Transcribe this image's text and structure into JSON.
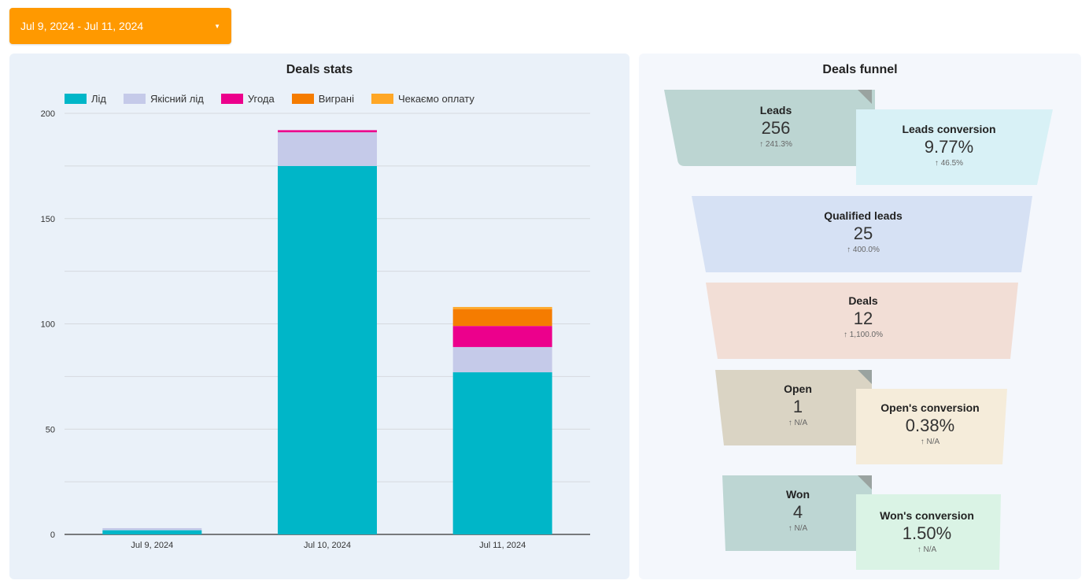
{
  "date_range": {
    "label": "Jul 9, 2024 - Jul 11, 2024"
  },
  "left_panel": {
    "title": "Deals stats"
  },
  "right_panel": {
    "title": "Deals funnel"
  },
  "chart_data": {
    "type": "bar",
    "stacked": true,
    "title": "Deals stats",
    "categories": [
      "Jul 9, 2024",
      "Jul 10, 2024",
      "Jul 11, 2024"
    ],
    "series": [
      {
        "name": "Лід",
        "color": "#00b6c8",
        "values": [
          2,
          175,
          77
        ]
      },
      {
        "name": "Якісний лід",
        "color": "#c5cae9",
        "values": [
          1,
          16,
          12
        ]
      },
      {
        "name": "Угода",
        "color": "#ec008c",
        "values": [
          0,
          1,
          10
        ]
      },
      {
        "name": "Виграні",
        "color": "#f57c00",
        "values": [
          0,
          0,
          8
        ]
      },
      {
        "name": "Чекаємо оплату",
        "color": "#ffa726",
        "values": [
          0,
          0,
          1
        ]
      }
    ],
    "ylim": [
      0,
      200
    ],
    "yticks": [
      0,
      50,
      100,
      150,
      200
    ],
    "grid": true,
    "legend_position": "top-left"
  },
  "funnel": {
    "leads": {
      "label": "Leads",
      "value": "256",
      "change": "241.3%",
      "color": "#bcd5d2"
    },
    "leads_conversion": {
      "label": "Leads conversion",
      "value": "9.77%",
      "change": "46.5%",
      "color": "#d8f1f6"
    },
    "qualified_leads": {
      "label": "Qualified leads",
      "value": "25",
      "change": "400.0%",
      "color": "#d6e1f4"
    },
    "deals": {
      "label": "Deals",
      "value": "12",
      "change": "1,100.0%",
      "color": "#f2ded6"
    },
    "open": {
      "label": "Open",
      "value": "1",
      "change": "N/A",
      "color": "#dad4c4"
    },
    "open_conversion": {
      "label": "Open's conversion",
      "value": "0.38%",
      "change": "N/A",
      "color": "#f5ecda"
    },
    "won": {
      "label": "Won",
      "value": "4",
      "change": "N/A",
      "color": "#bdd6d3"
    },
    "won_conversion": {
      "label": "Won's conversion",
      "value": "1.50%",
      "change": "N/A",
      "color": "#daf3e5"
    },
    "up_arrow": "up-arrow-icon"
  }
}
